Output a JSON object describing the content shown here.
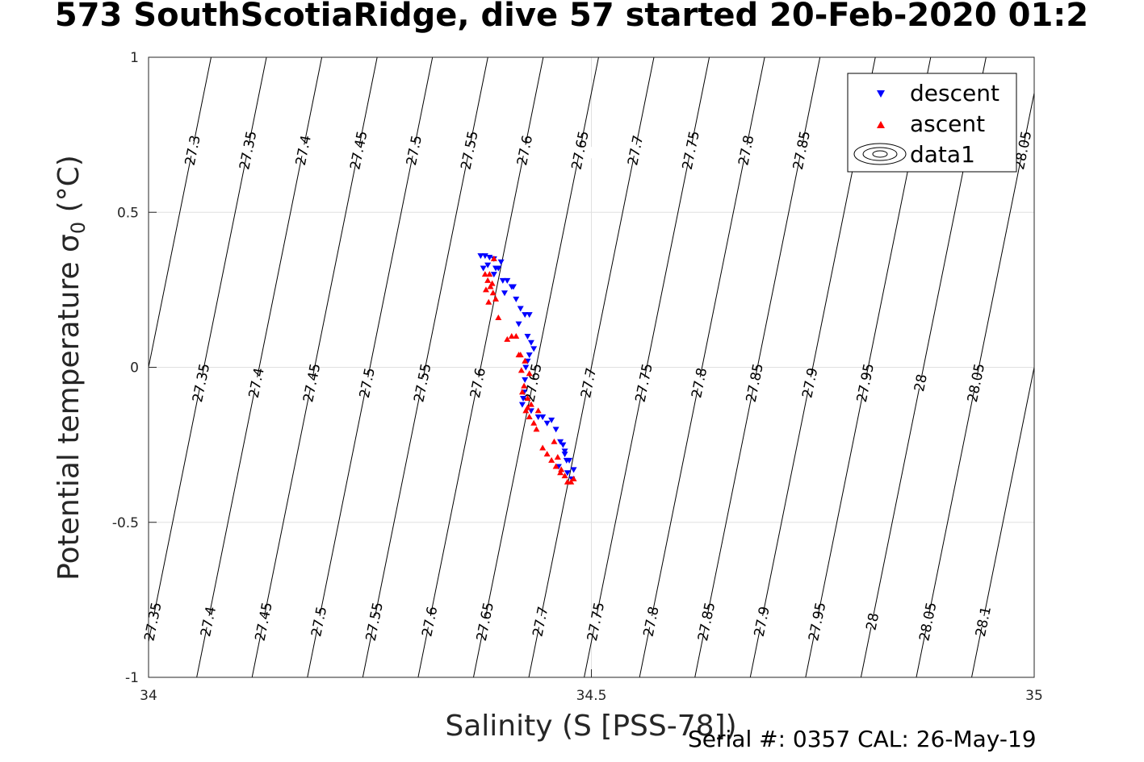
{
  "title": "573 SouthScotiaRidge, dive 57 started 20-Feb-2020 01:2",
  "note": "Serial #: 0357  CAL: 26-May-19",
  "chart_data": {
    "type": "scatter",
    "xlabel": "Salinity (S [PSS-78])",
    "ylabel_main": "Potential temperature σ",
    "ylabel_sub": "0",
    "ylabel_unit": " (°C)",
    "xlim": [
      34,
      35
    ],
    "ylim": [
      -1,
      1
    ],
    "x_ticks": [
      34,
      34.5,
      35
    ],
    "x_tick_labels": [
      "34",
      "34.5",
      "35"
    ],
    "y_ticks": [
      -1,
      -0.5,
      0,
      0.5,
      1
    ],
    "y_tick_labels": [
      "-1",
      "-0.5",
      "0",
      "0.5",
      "1"
    ],
    "grid": true,
    "legend_position": "top-right",
    "legend": [
      "descent",
      "ascent",
      "data1"
    ],
    "colors": {
      "descent": "#0000ff",
      "ascent": "#ff0000",
      "contour": "#000000",
      "grid": "#e0e0e0"
    },
    "contours": {
      "levels": [
        27.3,
        27.35,
        27.4,
        27.45,
        27.5,
        27.55,
        27.6,
        27.65,
        27.7,
        27.75,
        27.8,
        27.85,
        27.9,
        27.95,
        28,
        28.05,
        28.1
      ],
      "labels_top": [
        "27.3",
        "27.35",
        "27.4",
        "27.45",
        "27.5",
        "27.55",
        "27.6",
        "27.65",
        "27.7",
        "27.75",
        "27.8",
        "27.85",
        "27.95",
        "28.05"
      ],
      "labels_middle": [
        "27.35",
        "27.4",
        "27.45",
        "27.5",
        "27.55",
        "27.6",
        "27.65",
        "27.7",
        "27.75",
        "27.8",
        "27.85",
        "27.9",
        "27.95",
        "28",
        "28.05",
        "28.1"
      ],
      "labels_bottom": [
        "27.35",
        "27.4",
        "27.45",
        "27.5",
        "27.55",
        "27.6",
        "27.65",
        "27.7",
        "27.75",
        "27.8",
        "27.85",
        "27.9",
        "27.95",
        "28",
        "28.05",
        "28.1"
      ]
    },
    "series": [
      {
        "name": "descent",
        "x": [
          34.375,
          34.38,
          34.385,
          34.39,
          34.383,
          34.378,
          34.392,
          34.395,
          34.398,
          34.39,
          34.405,
          34.41,
          34.412,
          34.402,
          34.4,
          34.415,
          34.42,
          34.425,
          34.43,
          34.418,
          34.428,
          34.432,
          34.435,
          34.43,
          34.428,
          34.426,
          34.425,
          34.424,
          34.423,
          34.422,
          34.432,
          34.44,
          34.445,
          34.45,
          34.455,
          34.46,
          34.465,
          34.47,
          34.475,
          34.48,
          34.463,
          34.473,
          34.478,
          34.47,
          34.468,
          34.472
        ],
        "y": [
          0.36,
          0.36,
          0.355,
          0.35,
          0.33,
          0.32,
          0.32,
          0.32,
          0.34,
          0.3,
          0.28,
          0.26,
          0.26,
          0.24,
          0.28,
          0.22,
          0.19,
          0.17,
          0.17,
          0.14,
          0.1,
          0.08,
          0.06,
          0.04,
          0.02,
          0.0,
          -0.04,
          -0.08,
          -0.1,
          -0.12,
          -0.14,
          -0.16,
          -0.16,
          -0.18,
          -0.17,
          -0.2,
          -0.24,
          -0.27,
          -0.3,
          -0.33,
          -0.32,
          -0.34,
          -0.36,
          -0.28,
          -0.25,
          -0.3
        ]
      },
      {
        "name": "ascent",
        "x": [
          34.38,
          34.383,
          34.386,
          34.389,
          34.392,
          34.385,
          34.388,
          34.384,
          34.39,
          34.381,
          34.395,
          34.41,
          34.415,
          34.405,
          34.42,
          34.425,
          34.418,
          34.43,
          34.421,
          34.424,
          34.428,
          34.432,
          34.426,
          34.422,
          34.43,
          34.435,
          34.44,
          34.428,
          34.438,
          34.445,
          34.45,
          34.455,
          34.46,
          34.465,
          34.47,
          34.473,
          34.477,
          34.48,
          34.466,
          34.462,
          34.458
        ],
        "y": [
          0.3,
          0.28,
          0.26,
          0.24,
          0.22,
          0.3,
          0.27,
          0.21,
          0.35,
          0.25,
          0.16,
          0.1,
          0.1,
          0.09,
          0.04,
          0.02,
          0.04,
          -0.02,
          -0.01,
          -0.06,
          -0.1,
          -0.12,
          -0.14,
          -0.08,
          -0.16,
          -0.18,
          -0.14,
          -0.13,
          -0.2,
          -0.26,
          -0.28,
          -0.3,
          -0.32,
          -0.34,
          -0.35,
          -0.37,
          -0.37,
          -0.36,
          -0.33,
          -0.29,
          -0.24
        ]
      }
    ]
  }
}
